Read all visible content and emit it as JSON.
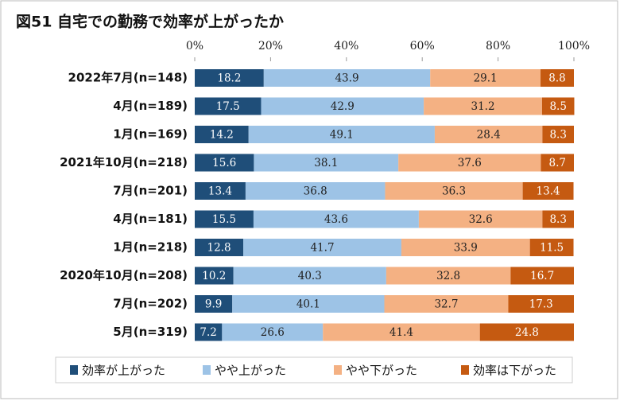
{
  "chart_data": {
    "type": "stacked-bar-horizontal",
    "title": "図51 自宅での勤務で効率が上がったか",
    "categories": [
      "2022年7月(n=148)",
      "4月(n=189)",
      "1月(n=169)",
      "2021年10月(n=218)",
      "7月(n=201)",
      "4月(n=181)",
      "1月(n=218)",
      "2020年10月(n=208)",
      "7月(n=202)",
      "5月(n=319)"
    ],
    "series": [
      {
        "name": "効率が上がった",
        "color": "#1f4e79",
        "values": [
          18.2,
          17.5,
          14.2,
          15.6,
          13.4,
          15.5,
          12.8,
          10.2,
          9.9,
          7.2
        ]
      },
      {
        "name": "やや上がった",
        "color": "#9dc3e6",
        "values": [
          43.9,
          42.9,
          49.1,
          38.1,
          36.8,
          43.6,
          41.7,
          40.3,
          40.1,
          26.6
        ]
      },
      {
        "name": "やや下がった",
        "color": "#f4b183",
        "values": [
          29.1,
          31.2,
          28.4,
          37.6,
          36.3,
          32.6,
          33.9,
          32.8,
          32.7,
          41.4
        ]
      },
      {
        "name": "効率は下がった",
        "color": "#c55a11",
        "values": [
          8.8,
          8.5,
          8.3,
          8.7,
          13.4,
          8.3,
          11.5,
          16.7,
          17.3,
          24.8
        ]
      }
    ],
    "xlim": [
      0,
      100
    ],
    "xticks": [
      {
        "value": 0,
        "label": "0%"
      },
      {
        "value": 20,
        "label": "20%"
      },
      {
        "value": 40,
        "label": "40%"
      },
      {
        "value": 60,
        "label": "60%"
      },
      {
        "value": 80,
        "label": "80%"
      },
      {
        "value": 100,
        "label": "100%"
      }
    ],
    "legend": "bottom"
  }
}
